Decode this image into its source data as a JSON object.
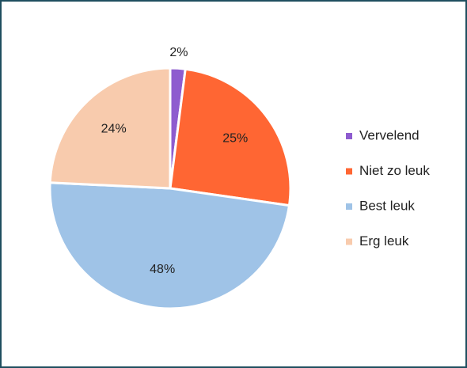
{
  "chart_data": {
    "type": "pie",
    "categories": [
      "Vervelend",
      "Niet zo leuk",
      "Best leuk",
      "Erg leuk"
    ],
    "values": [
      2,
      25,
      48,
      24
    ],
    "value_labels": [
      "2%",
      "25%",
      "48%",
      "24%"
    ],
    "colors": [
      "#8e5ccf",
      "#ff6633",
      "#9fc3e7",
      "#f8cbad"
    ],
    "legend": "right"
  }
}
